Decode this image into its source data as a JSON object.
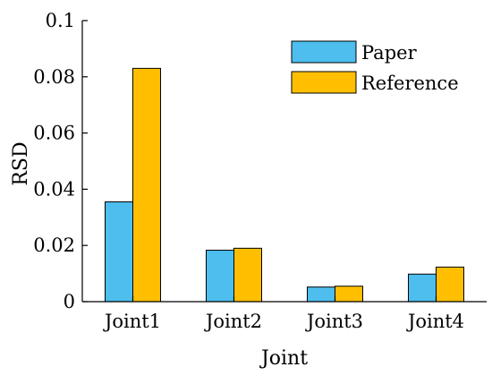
{
  "chart_data": {
    "type": "bar",
    "title": "",
    "xlabel": "Joint",
    "ylabel": "RSD",
    "categories": [
      "Joint1",
      "Joint2",
      "Joint3",
      "Joint4"
    ],
    "series": [
      {
        "name": "Paper",
        "values": [
          0.0355,
          0.0183,
          0.0052,
          0.0098
        ],
        "color": "#4DBEEE"
      },
      {
        "name": "Reference",
        "values": [
          0.083,
          0.019,
          0.0055,
          0.0123
        ],
        "color": "#FFBF00"
      }
    ],
    "ylim": [
      0,
      0.1
    ],
    "yticks": [
      0,
      0.02,
      0.04,
      0.06,
      0.08,
      0.1
    ],
    "ytick_labels": [
      "0",
      "0.02",
      "0.04",
      "0.06",
      "0.08",
      "0.1"
    ],
    "grid": false,
    "legend_position": "top-right"
  }
}
